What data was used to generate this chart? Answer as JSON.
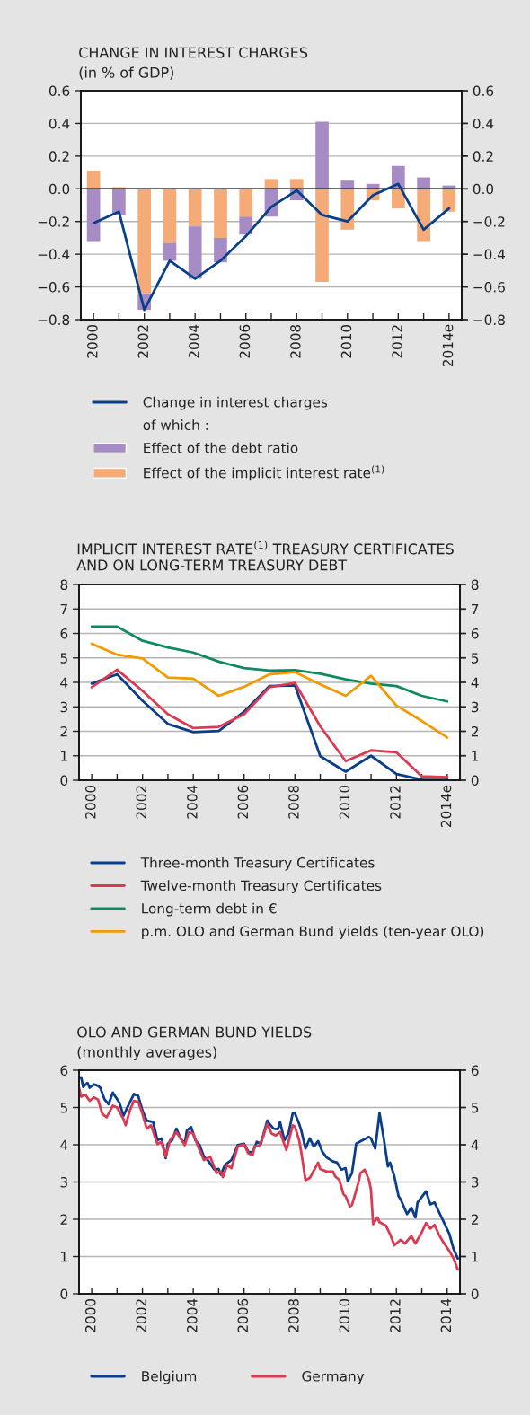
{
  "chart_data": [
    {
      "type": "bar",
      "title": "CHANGE IN INTEREST CHARGES",
      "subtitle": "(in % of GDP)",
      "stacked": true,
      "categories": [
        "2000",
        null,
        "2002",
        null,
        "2004",
        null,
        "2006",
        null,
        "2008",
        null,
        "2010",
        null,
        "2012",
        null,
        "2014e"
      ],
      "series": [
        {
          "name": "Change in interest charges",
          "type": "line",
          "color": "#073f8b",
          "values": [
            -0.21,
            -0.14,
            -0.74,
            -0.44,
            -0.55,
            -0.44,
            -0.29,
            -0.11,
            -0.01,
            -0.16,
            -0.2,
            -0.04,
            0.03,
            -0.25,
            -0.12
          ]
        },
        {
          "name": "Effect of the implicit interest rate$^{(1)}$",
          "type": "bar",
          "color": "#f5ab78",
          "values": [
            0.11,
            0.01,
            -0.64,
            -0.33,
            -0.23,
            -0.3,
            -0.17,
            0.06,
            0.06,
            -0.57,
            -0.25,
            -0.07,
            -0.12,
            -0.32,
            -0.14
          ]
        },
        {
          "name": "Effect of the debt ratio",
          "type": "bar",
          "color": "#a68bc4",
          "values": [
            -0.32,
            -0.16,
            -0.1,
            -0.11,
            -0.32,
            -0.15,
            -0.11,
            -0.17,
            -0.07,
            0.41,
            0.05,
            0.03,
            0.14,
            0.07,
            0.02
          ]
        }
      ],
      "annotations": [
        "of which :"
      ],
      "ylim": [
        -0.8,
        0.6
      ],
      "yticks": [
        {
          "value": -0.8,
          "label": "−0.8"
        },
        {
          "value": -0.6,
          "label": "−0.6"
        },
        {
          "value": -0.4,
          "label": "−0.4"
        },
        {
          "value": -0.2,
          "label": "−0.2"
        },
        {
          "value": 0,
          "label": "0.0"
        },
        {
          "value": 0.2,
          "label": "0.2"
        },
        {
          "value": 0.4,
          "label": "0.4"
        },
        {
          "value": 0.6,
          "label": "0.6"
        }
      ],
      "y2lim": [
        -0.8,
        0.6
      ],
      "y2ticks": [
        {
          "value": -0.8,
          "label": "−0.8"
        },
        {
          "value": -0.6,
          "label": "−0.6"
        },
        {
          "value": -0.4,
          "label": "−0.4"
        },
        {
          "value": -0.2,
          "label": "−0.2"
        },
        {
          "value": 0,
          "label": "0.0"
        },
        {
          "value": 0.2,
          "label": "0.2"
        },
        {
          "value": 0.4,
          "label": "0.4"
        },
        {
          "value": 0.6,
          "label": "0.6"
        }
      ],
      "ref_lines": [
        {
          "axis": "y",
          "value": 0,
          "color": "#000000"
        }
      ],
      "grid": "y",
      "legend": "bottom"
    },
    {
      "type": "line",
      "title": "IMPLICIT INTEREST RATE$^{(1)}$ TREASURY CERTIFICATES\nAND ON LONG-TERM TREASURY DEBT",
      "categories": [
        "2000",
        null,
        "2002",
        null,
        "2004",
        null,
        "2006",
        null,
        "2008",
        null,
        "2010",
        null,
        "2012",
        null,
        "2014e"
      ],
      "series": [
        {
          "name": "Three-month Treasury Certificates",
          "color": "#0a3d8c",
          "values": [
            3.95,
            4.33,
            3.25,
            2.3,
            1.97,
            2.01,
            2.8,
            3.85,
            3.88,
            0.98,
            0.35,
            1.0,
            0.25,
            0.02,
            0.01
          ]
        },
        {
          "name": "Twelve-month Treasury Certificates",
          "color": "#dc3a52",
          "values": [
            3.8,
            4.52,
            3.65,
            2.7,
            2.13,
            2.18,
            2.7,
            3.8,
            3.98,
            2.2,
            0.78,
            1.22,
            1.14,
            0.16,
            0.12
          ]
        },
        {
          "name": "Long-term debt in €",
          "color": "#0e8a63",
          "values": [
            6.28,
            6.28,
            5.7,
            5.43,
            5.22,
            4.85,
            4.58,
            4.48,
            4.5,
            4.35,
            4.12,
            3.95,
            3.85,
            3.45,
            3.22
          ]
        },
        {
          "name": "p.m. OLO and German Bund yields (ten-year OLO)",
          "color": "#f39a00",
          "values": [
            5.58,
            5.13,
            4.98,
            4.2,
            4.15,
            3.45,
            3.82,
            4.33,
            4.42,
            3.92,
            3.45,
            4.27,
            3.05,
            2.42,
            1.75
          ]
        }
      ],
      "ylim": [
        0,
        8
      ],
      "yticks": [
        0,
        1,
        2,
        3,
        4,
        5,
        6,
        7,
        8
      ],
      "y2lim": [
        0,
        8
      ],
      "y2ticks": [
        0,
        1,
        2,
        3,
        4,
        5,
        6,
        7,
        8
      ],
      "grid": "y",
      "legend": "bottom"
    },
    {
      "type": "line",
      "title": "OLO AND GERMAN BUND YIELDS",
      "subtitle": "(monthly averages)",
      "series": [
        {
          "name": "Belgium",
          "color": "#0a3d8c",
          "x": [
            "2000-01",
            "2000-02",
            "2000-03",
            "2000-05",
            "2000-06",
            "2000-08",
            "2000-10",
            "2000-11",
            "2001-01",
            "2001-03",
            "2001-05",
            "2001-06",
            "2001-08",
            "2001-10",
            "2001-12",
            "2002-03",
            "2002-05",
            "2002-07",
            "2002-09",
            "2002-12",
            "2003-02",
            "2003-04",
            "2003-06",
            "2003-07",
            "2003-09",
            "2003-11",
            "2004-01",
            "2004-03",
            "2004-04",
            "2004-06",
            "2004-08",
            "2004-10",
            "2004-12",
            "2005-02",
            "2005-05",
            "2005-07",
            "2005-08",
            "2005-10",
            "2006-01",
            "2006-04",
            "2006-07",
            "2006-09",
            "2006-11",
            "2007-01",
            "2007-03",
            "2007-06",
            "2007-07",
            "2007-09",
            "2007-11",
            "2007-12",
            "2008-02",
            "2008-04",
            "2008-06",
            "2008-07",
            "2008-09",
            "2008-10",
            "2008-12",
            "2009-02",
            "2009-04",
            "2009-06",
            "2009-08",
            "2009-10",
            "2010-01",
            "2010-03",
            "2010-05",
            "2010-07",
            "2010-08",
            "2010-10",
            "2010-12",
            "2011-03",
            "2011-06",
            "2011-07",
            "2011-09",
            "2011-11",
            "2012-01",
            "2012-03",
            "2012-04",
            "2012-06",
            "2012-08",
            "2012-09",
            "2012-12",
            "2013-02",
            "2013-04",
            "2013-05",
            "2013-09",
            "2013-11",
            "2014-01",
            "2014-04",
            "2014-08",
            "2014-10",
            "2014-12"
          ],
          "values": [
            5.8,
            5.81,
            5.55,
            5.66,
            5.53,
            5.62,
            5.58,
            5.53,
            5.22,
            5.09,
            5.4,
            5.31,
            5.14,
            4.78,
            5.02,
            5.36,
            5.31,
            4.92,
            4.65,
            4.61,
            4.12,
            4.17,
            3.64,
            4.03,
            4.12,
            4.43,
            4.17,
            4.03,
            4.39,
            4.47,
            4.12,
            3.99,
            3.68,
            3.57,
            3.33,
            3.35,
            3.2,
            3.46,
            3.59,
            3.99,
            4.03,
            3.81,
            3.79,
            4.08,
            4.03,
            4.65,
            4.56,
            4.43,
            4.42,
            4.61,
            4.12,
            4.3,
            4.85,
            4.85,
            4.56,
            4.39,
            3.9,
            4.17,
            3.95,
            4.1,
            3.81,
            3.66,
            3.55,
            3.52,
            3.33,
            3.37,
            3.02,
            3.24,
            4.03,
            4.12,
            4.21,
            4.17,
            3.9,
            4.85,
            4.17,
            3.42,
            3.52,
            3.15,
            2.62,
            2.53,
            2.14,
            2.31,
            2.05,
            2.45,
            2.75,
            2.4,
            2.45,
            2.09,
            1.61,
            1.2,
            0.95
          ]
        },
        {
          "name": "Germany",
          "color": "#dc3a52",
          "x": [
            "2000-01",
            "2000-02",
            "2000-04",
            "2000-06",
            "2000-08",
            "2000-10",
            "2000-12",
            "2001-02",
            "2001-05",
            "2001-07",
            "2001-10",
            "2001-11",
            "2002-01",
            "2002-03",
            "2002-05",
            "2002-07",
            "2002-09",
            "2002-11",
            "2003-02",
            "2003-04",
            "2003-06",
            "2003-08",
            "2003-11",
            "2004-01",
            "2004-03",
            "2004-05",
            "2004-07",
            "2004-09",
            "2004-12",
            "2005-03",
            "2005-06",
            "2005-08",
            "2005-09",
            "2005-11",
            "2006-01",
            "2006-04",
            "2006-07",
            "2006-09",
            "2006-11",
            "2006-12",
            "2007-02",
            "2007-04",
            "2007-06",
            "2007-08",
            "2007-10",
            "2007-12",
            "2008-03",
            "2008-06",
            "2008-07",
            "2008-09",
            "2008-10",
            "2008-12",
            "2009-02",
            "2009-03",
            "2009-06",
            "2009-07",
            "2009-10",
            "2010-01",
            "2010-02",
            "2010-04",
            "2010-06",
            "2010-07",
            "2010-09",
            "2010-10",
            "2011-01",
            "2011-02",
            "2011-04",
            "2011-06",
            "2011-07",
            "2011-08",
            "2011-10",
            "2011-11",
            "2012-02",
            "2012-04",
            "2012-06",
            "2012-09",
            "2012-11",
            "2013-02",
            "2013-04",
            "2013-07",
            "2013-09",
            "2013-11",
            "2014-01",
            "2014-03",
            "2014-05",
            "2014-08",
            "2014-10",
            "2014-12"
          ],
          "values": [
            5.53,
            5.29,
            5.34,
            5.18,
            5.27,
            5.21,
            4.83,
            4.74,
            5.05,
            5.0,
            4.69,
            4.52,
            4.92,
            5.18,
            5.15,
            4.83,
            4.43,
            4.52,
            4.02,
            4.08,
            3.68,
            4.12,
            4.34,
            4.17,
            3.99,
            4.34,
            4.3,
            3.99,
            3.59,
            3.68,
            3.24,
            3.28,
            3.13,
            3.46,
            3.37,
            3.95,
            4.01,
            3.77,
            3.72,
            3.96,
            3.96,
            4.21,
            4.56,
            4.3,
            4.25,
            4.34,
            3.86,
            4.52,
            4.49,
            4.12,
            3.81,
            3.05,
            3.11,
            3.2,
            3.52,
            3.35,
            3.28,
            3.28,
            3.15,
            3.06,
            2.67,
            2.62,
            2.34,
            2.38,
            2.98,
            3.24,
            3.33,
            3.06,
            2.8,
            1.87,
            2.05,
            1.92,
            1.83,
            1.6,
            1.3,
            1.45,
            1.35,
            1.55,
            1.35,
            1.65,
            1.9,
            1.75,
            1.85,
            1.6,
            1.4,
            1.15,
            0.95,
            0.65
          ]
        }
      ],
      "xlim": [
        "2000-01",
        "2015-01"
      ],
      "xticks": [
        {
          "value": "2000-07",
          "label": "2000"
        },
        {
          "value": "2001-07",
          "label": null
        },
        {
          "value": "2002-07",
          "label": "2002"
        },
        {
          "value": "2003-07",
          "label": null
        },
        {
          "value": "2004-07",
          "label": "2004"
        },
        {
          "value": "2005-07",
          "label": null
        },
        {
          "value": "2006-07",
          "label": "2006"
        },
        {
          "value": "2007-07",
          "label": null
        },
        {
          "value": "2008-07",
          "label": "2008"
        },
        {
          "value": "2009-07",
          "label": null
        },
        {
          "value": "2010-07",
          "label": "2010"
        },
        {
          "value": "2011-07",
          "label": null
        },
        {
          "value": "2012-07",
          "label": "2012"
        },
        {
          "value": "2013-07",
          "label": null
        },
        {
          "value": "2014-07",
          "label": "2014"
        }
      ],
      "ylim": [
        0,
        6
      ],
      "yticks": [
        0,
        1,
        2,
        3,
        4,
        5,
        6
      ],
      "y2lim": [
        0,
        6
      ],
      "y2ticks": [
        0,
        1,
        2,
        3,
        4,
        5,
        6
      ],
      "grid": "y",
      "legend": "bottom"
    }
  ]
}
